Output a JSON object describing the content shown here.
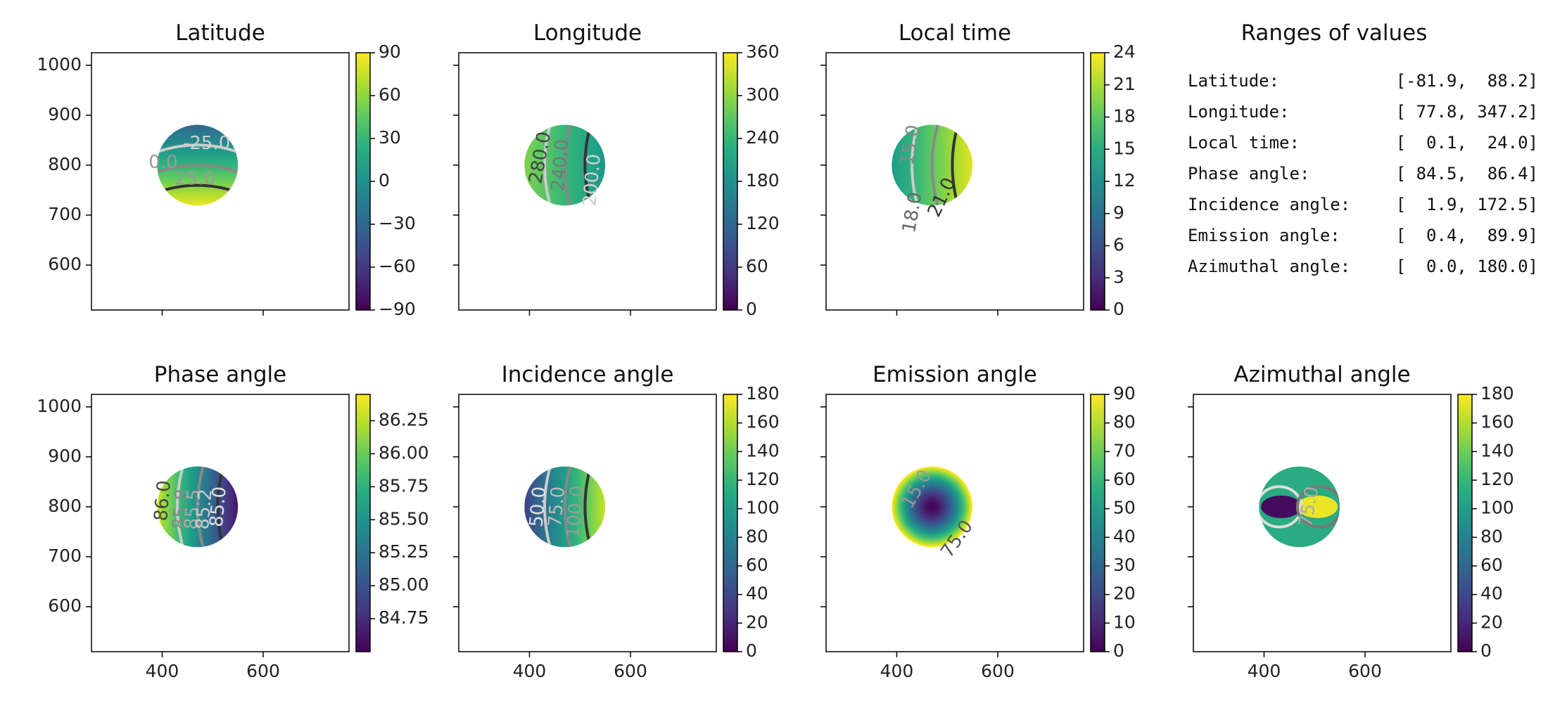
{
  "chart_data": [
    {
      "type": "heatmap",
      "title": "Latitude",
      "xlabel": "",
      "ylabel": "",
      "xlim": [
        260,
        770
      ],
      "ylim": [
        510,
        1025
      ],
      "xticks": [
        400,
        600
      ],
      "yticks": [
        600,
        700,
        800,
        900,
        1000
      ],
      "show_xtick_labels": false,
      "show_ytick_labels": true,
      "colorbar": {
        "range": [
          -90,
          90
        ],
        "ticks": [
          90,
          60,
          30,
          0,
          -30,
          -60,
          -90
        ],
        "tick_labels": [
          "90",
          "60",
          "30",
          "0",
          "−30",
          "−60",
          "−90"
        ]
      },
      "disk": {
        "center": [
          470,
          800
        ],
        "radius": 80,
        "value_direction": "top-to-bottom",
        "value_range": [
          -30,
          85
        ]
      },
      "contour_labels": [
        {
          "text": "-25.0",
          "x": 488,
          "y": 843,
          "color": "#cfcfcf"
        },
        {
          "text": "0.0",
          "x": 402,
          "y": 805,
          "color": "#9a9a9a"
        },
        {
          "text": "25.0",
          "x": 465,
          "y": 772,
          "color": "#9a9a9a"
        }
      ]
    },
    {
      "type": "heatmap",
      "title": "Longitude",
      "xlabel": "",
      "ylabel": "",
      "xlim": [
        260,
        770
      ],
      "ylim": [
        510,
        1025
      ],
      "xticks": [
        400,
        600
      ],
      "yticks": [
        600,
        700,
        800,
        900,
        1000
      ],
      "show_xtick_labels": false,
      "show_ytick_labels": false,
      "colorbar": {
        "range": [
          0,
          360
        ],
        "ticks": [
          360,
          300,
          240,
          180,
          120,
          60,
          0
        ],
        "tick_labels": [
          "360",
          "300",
          "240",
          "180",
          "120",
          "60",
          "0"
        ]
      },
      "disk": {
        "center": [
          470,
          800
        ],
        "radius": 80,
        "value_direction": "left-to-right",
        "value_range": [
          290,
          190
        ]
      },
      "contour_labels": [
        {
          "text": "280.0",
          "x": 422,
          "y": 815,
          "color": "#444444",
          "rotate": -80
        },
        {
          "text": "240.0",
          "x": 462,
          "y": 800,
          "color": "#777777",
          "rotate": -85
        },
        {
          "text": "200.0",
          "x": 525,
          "y": 770,
          "color": "#cfcfcf",
          "rotate": -85
        }
      ]
    },
    {
      "type": "heatmap",
      "title": "Local time",
      "xlabel": "",
      "ylabel": "",
      "xlim": [
        260,
        770
      ],
      "ylim": [
        510,
        1025
      ],
      "xticks": [
        400,
        600
      ],
      "yticks": [
        600,
        700,
        800,
        900,
        1000
      ],
      "show_xtick_labels": false,
      "show_ytick_labels": false,
      "colorbar": {
        "range": [
          0,
          24
        ],
        "ticks": [
          24,
          21,
          18,
          15,
          12,
          9,
          6,
          3,
          0
        ],
        "tick_labels": [
          "24",
          "21",
          "18",
          "15",
          "12",
          "9",
          "6",
          "3",
          "0"
        ]
      },
      "disk": {
        "center": [
          470,
          800
        ],
        "radius": 80,
        "value_direction": "left-to-right",
        "value_range": [
          13,
          23
        ]
      },
      "contour_labels": [
        {
          "text": "15.0",
          "x": 428,
          "y": 840,
          "color": "#888888",
          "rotate": -80
        },
        {
          "text": "18.0",
          "x": 432,
          "y": 705,
          "color": "#666666",
          "rotate": -80
        },
        {
          "text": "21.0",
          "x": 490,
          "y": 735,
          "color": "#333333",
          "rotate": -65
        }
      ]
    },
    {
      "type": "table",
      "title": "Ranges of values",
      "rows": [
        {
          "label": "Latitude:",
          "range": "[-81.9,  88.2]"
        },
        {
          "label": "Longitude:",
          "range": "[ 77.8, 347.2]"
        },
        {
          "label": "Local time:",
          "range": "[  0.1,  24.0]"
        },
        {
          "label": "Phase angle:",
          "range": "[ 84.5,  86.4]"
        },
        {
          "label": "Incidence angle:",
          "range": "[  1.9, 172.5]"
        },
        {
          "label": "Emission angle:",
          "range": "[  0.4,  89.9]"
        },
        {
          "label": "Azimuthal angle:",
          "range": "[  0.0, 180.0]"
        }
      ]
    },
    {
      "type": "heatmap",
      "title": "Phase angle",
      "xlabel": "",
      "ylabel": "",
      "xlim": [
        260,
        770
      ],
      "ylim": [
        510,
        1025
      ],
      "xticks": [
        400,
        600
      ],
      "yticks": [
        600,
        700,
        800,
        900,
        1000
      ],
      "show_xtick_labels": true,
      "show_ytick_labels": true,
      "colorbar": {
        "range": [
          84.5,
          86.45
        ],
        "ticks": [
          86.25,
          86.0,
          85.75,
          85.5,
          85.25,
          85.0,
          84.75
        ],
        "tick_labels": [
          "86.25",
          "86.00",
          "85.75",
          "85.50",
          "85.25",
          "85.00",
          "84.75"
        ]
      },
      "disk": {
        "center": [
          470,
          800
        ],
        "radius": 80,
        "value_direction": "left-to-right",
        "value_range": [
          86.3,
          84.6
        ]
      },
      "contour_labels": [
        {
          "text": "86.0",
          "x": 402,
          "y": 812,
          "color": "#444444",
          "rotate": -85
        },
        {
          "text": "85.8",
          "x": 438,
          "y": 795,
          "color": "#888888",
          "rotate": -85
        },
        {
          "text": "85.5",
          "x": 462,
          "y": 795,
          "color": "#aaaaaa",
          "rotate": -85
        },
        {
          "text": "85.2",
          "x": 484,
          "y": 795,
          "color": "#cccccc",
          "rotate": -85
        },
        {
          "text": "85.0",
          "x": 512,
          "y": 800,
          "color": "#e0e0e0",
          "rotate": -85
        }
      ]
    },
    {
      "type": "heatmap",
      "title": "Incidence angle",
      "xlabel": "",
      "ylabel": "",
      "xlim": [
        260,
        770
      ],
      "ylim": [
        510,
        1025
      ],
      "xticks": [
        400,
        600
      ],
      "yticks": [
        600,
        700,
        800,
        900,
        1000
      ],
      "show_xtick_labels": true,
      "show_ytick_labels": false,
      "colorbar": {
        "range": [
          0,
          180
        ],
        "ticks": [
          180,
          160,
          140,
          120,
          100,
          80,
          60,
          40,
          20,
          0
        ],
        "tick_labels": [
          "180",
          "160",
          "140",
          "120",
          "100",
          "80",
          "60",
          "40",
          "20",
          "0"
        ]
      },
      "disk": {
        "center": [
          470,
          800
        ],
        "radius": 80,
        "value_direction": "left-to-right",
        "value_range": [
          35,
          165
        ]
      },
      "contour_labels": [
        {
          "text": "50.0",
          "x": 418,
          "y": 800,
          "color": "#e0e0e0",
          "rotate": -85
        },
        {
          "text": "75.0",
          "x": 455,
          "y": 800,
          "color": "#bbbbbb",
          "rotate": -85
        },
        {
          "text": "100.0",
          "x": 492,
          "y": 790,
          "color": "#999999",
          "rotate": -85
        }
      ]
    },
    {
      "type": "heatmap",
      "title": "Emission angle",
      "xlabel": "",
      "ylabel": "",
      "xlim": [
        260,
        770
      ],
      "ylim": [
        510,
        1025
      ],
      "xticks": [
        400,
        600
      ],
      "yticks": [
        600,
        700,
        800,
        900,
        1000
      ],
      "show_xtick_labels": true,
      "show_ytick_labels": false,
      "colorbar": {
        "range": [
          0,
          90
        ],
        "ticks": [
          90,
          80,
          70,
          60,
          50,
          40,
          30,
          20,
          10,
          0
        ],
        "tick_labels": [
          "90",
          "80",
          "70",
          "60",
          "50",
          "40",
          "30",
          "20",
          "10",
          "0"
        ]
      },
      "disk": {
        "center": [
          470,
          800
        ],
        "radius": 80,
        "value_direction": "radial",
        "value_range": [
          0,
          90
        ]
      },
      "contour_labels": [
        {
          "text": "15.0",
          "x": 440,
          "y": 835,
          "color": "#999999",
          "rotate": -60
        },
        {
          "text": "75.0",
          "x": 520,
          "y": 735,
          "color": "#555555",
          "rotate": -55
        }
      ]
    },
    {
      "type": "heatmap",
      "title": "Azimuthal angle",
      "xlabel": "",
      "ylabel": "",
      "xlim": [
        260,
        770
      ],
      "ylim": [
        510,
        1025
      ],
      "xticks": [
        400,
        600
      ],
      "yticks": [
        600,
        700,
        800,
        900,
        1000
      ],
      "show_xtick_labels": true,
      "show_ytick_labels": false,
      "colorbar": {
        "range": [
          0,
          180
        ],
        "ticks": [
          180,
          160,
          140,
          120,
          100,
          80,
          60,
          40,
          20,
          0
        ],
        "tick_labels": [
          "180",
          "160",
          "140",
          "120",
          "100",
          "80",
          "60",
          "40",
          "20",
          "0"
        ]
      },
      "disk": {
        "center": [
          470,
          800
        ],
        "radius": 80,
        "value_direction": "azimuthal",
        "value_range": [
          0,
          180
        ]
      },
      "contour_labels": [
        {
          "text": "75.0",
          "x": 490,
          "y": 800,
          "color": "#aaaaaa",
          "rotate": -80
        }
      ]
    }
  ]
}
